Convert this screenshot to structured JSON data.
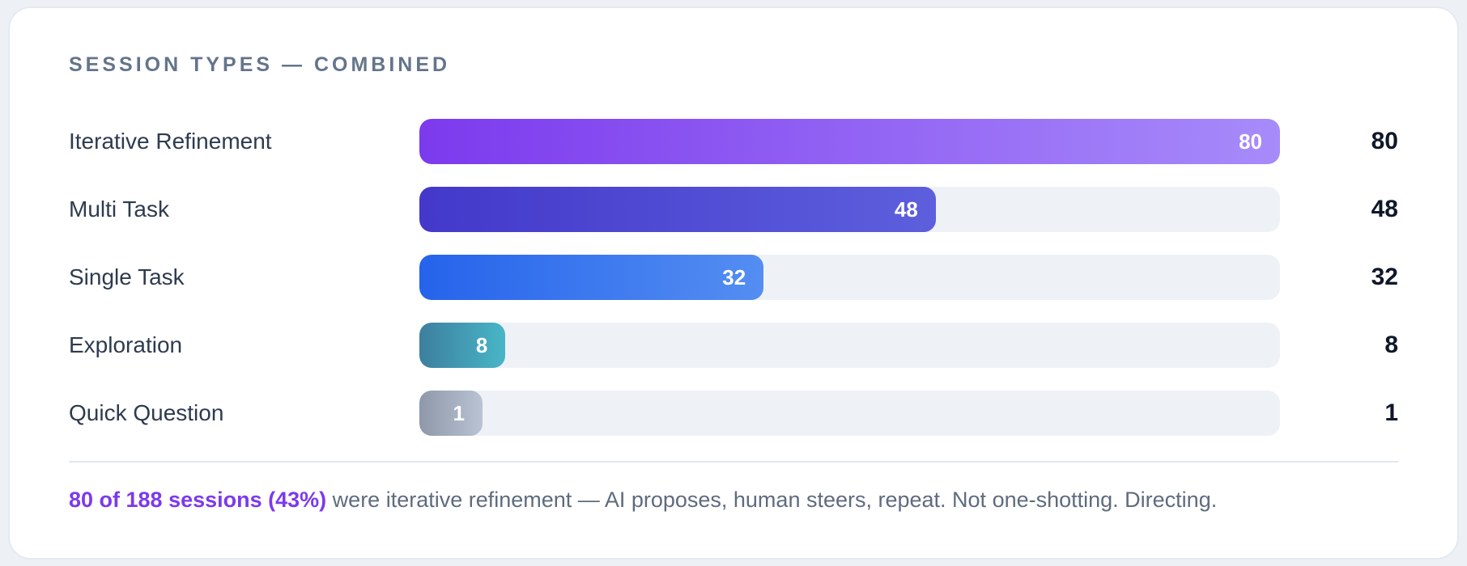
{
  "card": {
    "title": "SESSION TYPES — COMBINED",
    "footer": {
      "highlight": "80 of 188 sessions (43%)",
      "text": " were iterative refinement — AI proposes, human steers, repeat. Not one-shotting. Directing."
    }
  },
  "colors": {
    "page_background": "#edf1f6",
    "card_background": "#ffffff",
    "card_border": "#e4e9f2",
    "track": "#eef2f7",
    "title_text": "#64748b",
    "label_text": "#2e3b4f",
    "value_text": "#0f172a",
    "in_bar_value_text": "#ffffff",
    "divider": "#e2e8f0",
    "footer_highlight": "#7c3aed",
    "footer_text": "#5f6b7e"
  },
  "chart_data": {
    "type": "bar",
    "orientation": "horizontal",
    "title": "SESSION TYPES — COMBINED",
    "categories": [
      "Iterative Refinement",
      "Multi Task",
      "Single Task",
      "Exploration",
      "Quick Question"
    ],
    "values": [
      80,
      48,
      32,
      8,
      1
    ],
    "series_max": 80,
    "value_labels": "inside bar right end and right column",
    "grid": false,
    "legend": false,
    "bar_colors": [
      {
        "from": "#7c3aed",
        "to": "#a78bfa"
      },
      {
        "from": "#4338ca",
        "to": "#5d5fdd"
      },
      {
        "from": "#2563eb",
        "to": "#548ef2"
      },
      {
        "from": "#3d7f9e",
        "to": "#48b6c7"
      },
      {
        "from": "#8e98aa",
        "to": "#bac3d2"
      }
    ]
  }
}
